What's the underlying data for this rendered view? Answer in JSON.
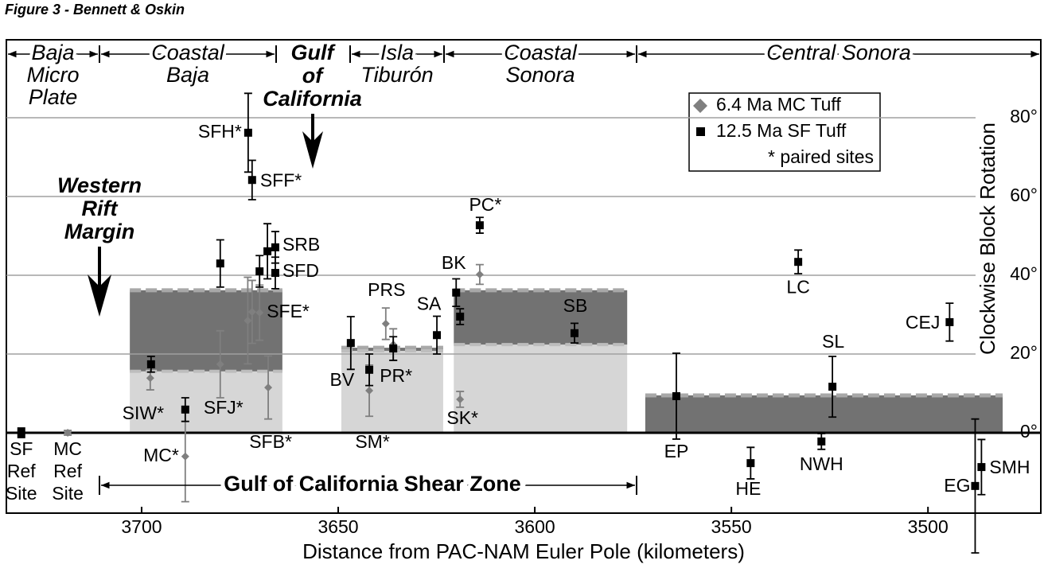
{
  "chart_data": {
    "type": "scatter",
    "title": "Figure 3 - Bennett & Oskin",
    "xlabel": "Distance from PAC-NAM Euler Pole (kilometers)",
    "ylabel": "Clockwise Block Rotation",
    "xlim": [
      3734.4,
      3471.3
    ],
    "ylim": [
      -20.4,
      99.8
    ],
    "xticks": [
      3700,
      3650,
      3600,
      3550,
      3500
    ],
    "yticks": [
      {
        "value": 0,
        "label": "0°"
      },
      {
        "value": 20,
        "label": "20°"
      },
      {
        "value": 40,
        "label": "40°"
      },
      {
        "value": 60,
        "label": "60°"
      },
      {
        "value": 80,
        "label": "80°"
      }
    ],
    "grid": true,
    "series": [
      {
        "name": "6.4 Ma MC Tuff",
        "color": "#7f7f7f",
        "marker": "diamond",
        "x": [
          3718.8,
          3688.9,
          3680,
          3673,
          3671.9,
          3670,
          3667.8,
          3697.8,
          3642.1,
          3637.9,
          3636,
          3619,
          3614
        ],
        "values": [
          0,
          -6,
          17.4,
          28.5,
          30.7,
          30.5,
          11.5,
          13.9,
          10.7,
          27.7,
          22.4,
          8.5,
          40.2
        ],
        "errors": [
          0.6,
          11.5,
          8.5,
          11,
          8,
          7,
          8,
          3,
          6.5,
          4,
          4,
          2,
          2.5
        ],
        "labels": [
          "MC Ref Site",
          "MC*",
          "SFJ*",
          null,
          null,
          "SFE*",
          "SFB*",
          null,
          null,
          "PRS",
          null,
          "SK*",
          null
        ]
      },
      {
        "name": "12.5 Ma SF Tuff",
        "color": "#000000",
        "marker": "square",
        "x": [
          3730.6,
          3672.9,
          3671.9,
          3666,
          3666,
          3668,
          3670,
          3680,
          3697.6,
          3688.9,
          3646.8,
          3642.1,
          3636,
          3624.9,
          3620,
          3619,
          3614,
          3589.9,
          3533,
          3494.5,
          3524.3,
          3564,
          3527.1,
          3545.1,
          3486.4,
          3488
        ],
        "values": [
          0,
          76.2,
          64.2,
          47.1,
          40.6,
          46.1,
          41,
          43,
          17.4,
          5.9,
          22.8,
          16,
          21.4,
          24.8,
          35.6,
          29.5,
          52.7,
          25.3,
          43.4,
          28.1,
          11.7,
          9.3,
          -2.2,
          -7.7,
          -8.7,
          -13.5
        ],
        "errors": [
          1.2,
          10,
          5,
          4,
          4,
          7,
          4,
          6,
          2,
          3,
          6.7,
          4,
          3,
          4.8,
          3.5,
          2,
          2,
          2.5,
          3,
          4.8,
          7.7,
          10.9,
          2,
          4,
          7,
          17
        ],
        "labels": [
          "SF Ref Site",
          "SFH*",
          "SFF*",
          "SRB",
          "SFD",
          null,
          null,
          null,
          "SIW*",
          null,
          "BV",
          "SM*",
          "PR*",
          "SA",
          "BK",
          null,
          "PC*",
          "SB",
          "LC",
          "CEJ",
          "SL",
          "EP",
          "NWH",
          "HE",
          "SMH",
          "EG"
        ]
      }
    ],
    "legend_note": "* paired sites",
    "blocks": [
      {
        "x": [
          3703.0,
          3664.2
        ],
        "y": [
          36.2,
          15.6
        ]
      },
      {
        "x": [
          3649.2,
          3623.3
        ],
        "y": [
          21.6,
          20.8
        ]
      },
      {
        "x": [
          3620.6,
          3576.5
        ],
        "y": [
          36.2,
          22.4
        ]
      },
      {
        "x": [
          3571.9,
          3481.0
        ],
        "y": [
          9.5,
          0
        ]
      }
    ],
    "regions": [
      "Baja Micro Plate",
      "Coastal Baja",
      "Gulf of California",
      "Isla Tiburón",
      "Coastal Sonora",
      "Central Sonora"
    ],
    "annotations": [
      "Western Rift Margin",
      "Gulf of California Shear Zone"
    ]
  }
}
